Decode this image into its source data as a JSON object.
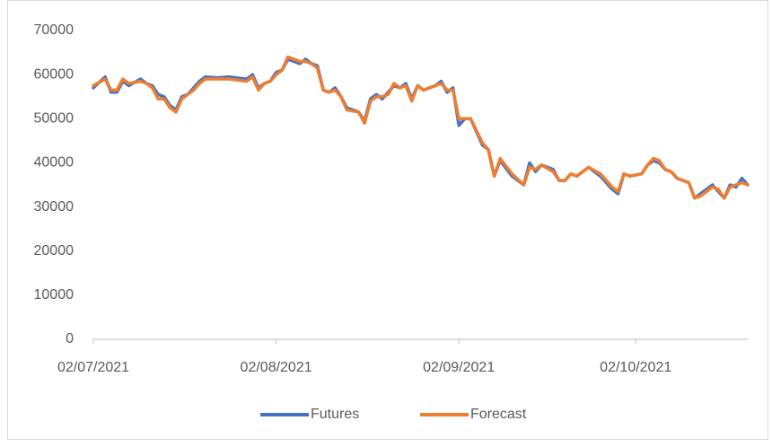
{
  "chart_data": {
    "type": "line",
    "x": [
      "02/07/2021",
      "04/07/2021",
      "05/07/2021",
      "06/07/2021",
      "07/07/2021",
      "08/07/2021",
      "10/07/2021",
      "11/07/2021",
      "12/07/2021",
      "13/07/2021",
      "14/07/2021",
      "15/07/2021",
      "16/07/2021",
      "17/07/2021",
      "18/07/2021",
      "19/07/2021",
      "20/07/2021",
      "21/07/2021",
      "23/07/2021",
      "25/07/2021",
      "28/07/2021",
      "29/07/2021",
      "30/07/2021",
      "31/07/2021",
      "01/08/2021",
      "02/08/2021",
      "03/08/2021",
      "04/08/2021",
      "05/08/2021",
      "06/08/2021",
      "07/08/2021",
      "08/08/2021",
      "09/08/2021",
      "10/08/2021",
      "11/08/2021",
      "12/08/2021",
      "13/08/2021",
      "14/08/2021",
      "16/08/2021",
      "17/08/2021",
      "18/08/2021",
      "19/08/2021",
      "20/08/2021",
      "21/08/2021",
      "22/08/2021",
      "23/08/2021",
      "24/08/2021",
      "25/08/2021",
      "26/08/2021",
      "27/08/2021",
      "29/08/2021",
      "30/08/2021",
      "31/08/2021",
      "01/09/2021",
      "02/09/2021",
      "03/09/2021",
      "04/09/2021",
      "06/09/2021",
      "07/09/2021",
      "08/09/2021",
      "09/09/2021",
      "11/09/2021",
      "13/09/2021",
      "14/09/2021",
      "15/09/2021",
      "16/09/2021",
      "18/09/2021",
      "19/09/2021",
      "20/09/2021",
      "21/09/2021",
      "22/09/2021",
      "24/09/2021",
      "26/09/2021",
      "28/09/2021",
      "29/09/2021",
      "30/09/2021",
      "01/10/2021",
      "03/10/2021",
      "04/10/2021",
      "05/10/2021",
      "06/10/2021",
      "07/10/2021",
      "08/10/2021",
      "09/10/2021",
      "11/10/2021",
      "12/10/2021",
      "13/10/2021",
      "15/10/2021",
      "16/10/2021",
      "17/10/2021",
      "18/10/2021",
      "19/10/2021",
      "20/10/2021",
      "21/10/2021"
    ],
    "series": [
      {
        "name": "Futures",
        "color": "#4472c4",
        "values": [
          57000,
          59500,
          56000,
          56000,
          58500,
          57500,
          59000,
          58000,
          57500,
          55500,
          55000,
          53000,
          52000,
          55000,
          55500,
          57000,
          58500,
          59500,
          59300,
          59500,
          59000,
          60000,
          57000,
          58000,
          58500,
          60500,
          61000,
          63500,
          63000,
          62500,
          63500,
          62500,
          62000,
          56500,
          56000,
          57000,
          55000,
          52500,
          51500,
          49500,
          54500,
          55500,
          54500,
          56000,
          57500,
          57000,
          58000,
          54500,
          57500,
          56500,
          57500,
          58500,
          56000,
          57000,
          48500,
          50000,
          50000,
          44000,
          43000,
          37000,
          40500,
          37000,
          35000,
          40000,
          38000,
          39500,
          38500,
          36000,
          36000,
          37500,
          37000,
          39000,
          37000,
          34000,
          33000,
          37500,
          37000,
          37500,
          39500,
          40500,
          40000,
          38500,
          38000,
          36500,
          35500,
          32000,
          33000,
          35000,
          33500,
          32000,
          35000,
          34500,
          36500,
          35000
        ]
      },
      {
        "name": "Forecast",
        "color": "#ed7d31",
        "values": [
          57500,
          59000,
          56500,
          56500,
          59000,
          58000,
          58500,
          58000,
          57000,
          54500,
          54500,
          52500,
          51500,
          54500,
          55500,
          56500,
          58000,
          59000,
          59000,
          59000,
          58500,
          59500,
          56500,
          58000,
          58500,
          60000,
          61000,
          64000,
          63500,
          63000,
          63000,
          62500,
          61500,
          56500,
          56000,
          56500,
          55000,
          52000,
          51500,
          49000,
          54000,
          55000,
          55000,
          55500,
          58000,
          57000,
          57500,
          54000,
          57500,
          56500,
          57500,
          58000,
          56500,
          56500,
          50000,
          50000,
          50000,
          44500,
          43000,
          37000,
          41000,
          37500,
          35000,
          39000,
          38500,
          39500,
          38000,
          36000,
          36000,
          37500,
          37000,
          39000,
          37500,
          34500,
          33500,
          37500,
          37000,
          37500,
          39500,
          41000,
          40500,
          38500,
          38000,
          36500,
          35500,
          32000,
          32500,
          34500,
          34000,
          32000,
          34500,
          35000,
          35500,
          35000
        ]
      }
    ],
    "xlim": [
      "02/07/2021",
      "21/10/2021"
    ],
    "xticks": [
      "02/07/2021",
      "02/08/2021",
      "02/09/2021",
      "02/10/2021"
    ],
    "ylim": [
      0,
      70000
    ],
    "yticks": [
      0,
      10000,
      20000,
      30000,
      40000,
      50000,
      60000,
      70000
    ],
    "grid": false,
    "legend": "bottom"
  }
}
